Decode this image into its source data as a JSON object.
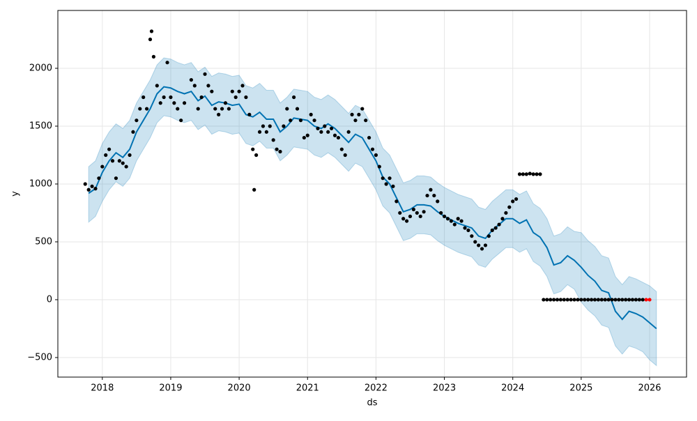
{
  "chart_data": {
    "type": "line",
    "xlabel": "ds",
    "ylabel": "y",
    "xlim": [
      2017.35,
      2026.54
    ],
    "ylim": [
      -669,
      2500
    ],
    "xticks": [
      2018,
      2019,
      2020,
      2021,
      2022,
      2023,
      2024,
      2025,
      2026
    ],
    "yticks": [
      {
        "value": -500,
        "label": "−500"
      },
      0,
      500,
      1000,
      1500,
      2000
    ],
    "grid": true,
    "series": [
      {
        "type": "band",
        "color": "#0072b2",
        "x": [
          2017.8,
          2017.9,
          2018.0,
          2018.1,
          2018.2,
          2018.3,
          2018.4,
          2018.5,
          2018.6,
          2018.7,
          2018.8,
          2018.9,
          2019.0,
          2019.1,
          2019.2,
          2019.3,
          2019.4,
          2019.5,
          2019.6,
          2019.7,
          2019.8,
          2019.9,
          2020.0,
          2020.1,
          2020.2,
          2020.3,
          2020.4,
          2020.5,
          2020.6,
          2020.7,
          2020.8,
          2020.9,
          2021.0,
          2021.1,
          2021.2,
          2021.3,
          2021.4,
          2021.5,
          2021.6,
          2021.7,
          2021.8,
          2021.9,
          2022.0,
          2022.1,
          2022.2,
          2022.3,
          2022.4,
          2022.5,
          2022.6,
          2022.7,
          2022.8,
          2022.9,
          2023.0,
          2023.1,
          2023.2,
          2023.3,
          2023.4,
          2023.5,
          2023.6,
          2023.7,
          2023.8,
          2023.9,
          2024.0,
          2024.1,
          2024.2,
          2024.3,
          2024.4,
          2024.5,
          2024.6,
          2024.7,
          2024.8,
          2024.9,
          2025.0,
          2025.1,
          2025.2,
          2025.3,
          2025.4,
          2025.5,
          2025.6,
          2025.7,
          2025.8,
          2025.9,
          2026.0,
          2026.1
        ],
        "lower": [
          670,
          720,
          850,
          950,
          1020,
          980,
          1050,
          1200,
          1300,
          1400,
          1530,
          1590,
          1580,
          1550,
          1530,
          1550,
          1470,
          1510,
          1430,
          1460,
          1450,
          1430,
          1440,
          1350,
          1330,
          1370,
          1310,
          1310,
          1200,
          1250,
          1320,
          1310,
          1300,
          1250,
          1230,
          1270,
          1230,
          1170,
          1110,
          1180,
          1150,
          1050,
          950,
          810,
          750,
          630,
          510,
          530,
          570,
          570,
          560,
          510,
          470,
          440,
          410,
          390,
          370,
          300,
          280,
          350,
          400,
          450,
          450,
          410,
          440,
          330,
          290,
          200,
          50,
          70,
          130,
          90,
          -20,
          -90,
          -140,
          -220,
          -240,
          -400,
          -470,
          -400,
          -420,
          -450,
          -520,
          -570
        ],
        "upper": [
          1150,
          1200,
          1350,
          1450,
          1520,
          1480,
          1550,
          1700,
          1800,
          1900,
          2030,
          2090,
          2080,
          2050,
          2030,
          2050,
          1970,
          2010,
          1930,
          1960,
          1950,
          1930,
          1940,
          1850,
          1830,
          1870,
          1810,
          1810,
          1700,
          1750,
          1820,
          1810,
          1800,
          1750,
          1730,
          1770,
          1730,
          1670,
          1610,
          1680,
          1650,
          1550,
          1450,
          1310,
          1250,
          1130,
          1010,
          1030,
          1070,
          1070,
          1060,
          1010,
          970,
          940,
          910,
          890,
          870,
          800,
          780,
          850,
          900,
          950,
          950,
          910,
          940,
          830,
          790,
          700,
          550,
          570,
          630,
          590,
          580,
          510,
          460,
          380,
          360,
          200,
          130,
          200,
          180,
          150,
          120,
          70
        ]
      },
      {
        "type": "line",
        "color": "#0072b2",
        "x": [
          2017.8,
          2017.9,
          2018.0,
          2018.1,
          2018.2,
          2018.3,
          2018.4,
          2018.5,
          2018.6,
          2018.7,
          2018.8,
          2018.9,
          2019.0,
          2019.1,
          2019.2,
          2019.3,
          2019.4,
          2019.5,
          2019.6,
          2019.7,
          2019.8,
          2019.9,
          2020.0,
          2020.1,
          2020.2,
          2020.3,
          2020.4,
          2020.5,
          2020.6,
          2020.7,
          2020.8,
          2020.9,
          2021.0,
          2021.1,
          2021.2,
          2021.3,
          2021.4,
          2021.5,
          2021.6,
          2021.7,
          2021.8,
          2021.9,
          2022.0,
          2022.1,
          2022.2,
          2022.3,
          2022.4,
          2022.5,
          2022.6,
          2022.7,
          2022.8,
          2022.9,
          2023.0,
          2023.1,
          2023.2,
          2023.3,
          2023.4,
          2023.5,
          2023.6,
          2023.7,
          2023.8,
          2023.9,
          2024.0,
          2024.1,
          2024.2,
          2024.3,
          2024.4,
          2024.5,
          2024.6,
          2024.7,
          2024.8,
          2024.9,
          2025.0,
          2025.1,
          2025.2,
          2025.3,
          2025.4,
          2025.5,
          2025.6,
          2025.7,
          2025.8,
          2025.9,
          2026.0,
          2026.1
        ],
        "values": [
          920,
          960,
          1100,
          1200,
          1270,
          1230,
          1300,
          1450,
          1550,
          1650,
          1780,
          1840,
          1830,
          1800,
          1780,
          1800,
          1720,
          1760,
          1680,
          1710,
          1700,
          1680,
          1690,
          1600,
          1580,
          1620,
          1560,
          1560,
          1450,
          1500,
          1570,
          1560,
          1550,
          1500,
          1480,
          1520,
          1480,
          1420,
          1360,
          1430,
          1400,
          1300,
          1200,
          1060,
          1000,
          880,
          760,
          780,
          820,
          820,
          810,
          760,
          720,
          690,
          660,
          640,
          620,
          550,
          530,
          600,
          650,
          700,
          700,
          660,
          690,
          580,
          540,
          450,
          300,
          320,
          380,
          340,
          280,
          210,
          160,
          80,
          60,
          -100,
          -170,
          -100,
          -120,
          -150,
          -200,
          -250
        ]
      },
      {
        "type": "scatter",
        "color": "#000000",
        "x": [
          2017.75,
          2017.8,
          2017.85,
          2017.9,
          2017.95,
          2018.0,
          2018.05,
          2018.1,
          2018.15,
          2018.2,
          2018.25,
          2018.3,
          2018.35,
          2018.4,
          2018.45,
          2018.5,
          2018.55,
          2018.6,
          2018.65,
          2018.7,
          2018.72,
          2018.75,
          2018.8,
          2018.85,
          2018.9,
          2018.95,
          2019.0,
          2019.05,
          2019.1,
          2019.15,
          2019.2,
          2019.3,
          2019.35,
          2019.4,
          2019.45,
          2019.5,
          2019.55,
          2019.6,
          2019.65,
          2019.7,
          2019.75,
          2019.8,
          2019.85,
          2019.9,
          2019.95,
          2020.0,
          2020.05,
          2020.1,
          2020.15,
          2020.2,
          2020.22,
          2020.25,
          2020.3,
          2020.35,
          2020.4,
          2020.45,
          2020.5,
          2020.55,
          2020.6,
          2020.65,
          2020.7,
          2020.75,
          2020.8,
          2020.85,
          2020.9,
          2020.95,
          2021.0,
          2021.05,
          2021.1,
          2021.15,
          2021.2,
          2021.25,
          2021.3,
          2021.35,
          2021.4,
          2021.45,
          2021.5,
          2021.55,
          2021.6,
          2021.65,
          2021.7,
          2021.75,
          2021.8,
          2021.85,
          2021.9,
          2021.95,
          2022.0,
          2022.05,
          2022.1,
          2022.15,
          2022.2,
          2022.25,
          2022.3,
          2022.35,
          2022.4,
          2022.45,
          2022.5,
          2022.55,
          2022.6,
          2022.65,
          2022.7,
          2022.75,
          2022.8,
          2022.85,
          2022.9,
          2022.95,
          2023.0,
          2023.05,
          2023.1,
          2023.15,
          2023.2,
          2023.25,
          2023.3,
          2023.35,
          2023.4,
          2023.45,
          2023.5,
          2023.55,
          2023.6,
          2023.65,
          2023.7,
          2023.75,
          2023.8,
          2023.85,
          2023.9,
          2023.95,
          2024.0,
          2024.05,
          2024.1,
          2024.15,
          2024.2,
          2024.25,
          2024.3,
          2024.35,
          2024.4,
          2024.45,
          2024.5,
          2024.55,
          2024.6,
          2024.65,
          2024.7,
          2024.75,
          2024.8,
          2024.85,
          2024.9,
          2024.95,
          2025.0,
          2025.05,
          2025.1,
          2025.15,
          2025.2,
          2025.25,
          2025.3,
          2025.35,
          2025.4,
          2025.45,
          2025.5,
          2025.55,
          2025.6,
          2025.65,
          2025.7,
          2025.75,
          2025.8,
          2025.85,
          2025.9
        ],
        "values": [
          1000,
          950,
          980,
          960,
          1050,
          1150,
          1250,
          1300,
          1200,
          1050,
          1200,
          1180,
          1150,
          1250,
          1450,
          1550,
          1650,
          1750,
          1650,
          2250,
          2320,
          2100,
          1850,
          1700,
          1750,
          2050,
          1750,
          1700,
          1650,
          1550,
          1700,
          1900,
          1850,
          1650,
          1750,
          1950,
          1850,
          1800,
          1650,
          1600,
          1650,
          1700,
          1650,
          1800,
          1750,
          1800,
          1850,
          1750,
          1600,
          1300,
          950,
          1250,
          1450,
          1500,
          1450,
          1500,
          1380,
          1300,
          1280,
          1500,
          1650,
          1550,
          1750,
          1650,
          1550,
          1400,
          1420,
          1600,
          1550,
          1480,
          1450,
          1500,
          1450,
          1480,
          1420,
          1400,
          1300,
          1250,
          1450,
          1600,
          1550,
          1600,
          1650,
          1550,
          1400,
          1300,
          1250,
          1150,
          1050,
          1000,
          1050,
          980,
          850,
          750,
          700,
          680,
          720,
          780,
          750,
          720,
          760,
          900,
          950,
          900,
          850,
          750,
          720,
          700,
          680,
          650,
          700,
          680,
          620,
          600,
          550,
          500,
          470,
          440,
          470,
          550,
          600,
          620,
          650,
          700,
          750,
          800,
          850,
          870,
          1085,
          1085,
          1085,
          1090,
          1085,
          1085,
          1085,
          0,
          0,
          0,
          0,
          0,
          0,
          0,
          0,
          0,
          0,
          0,
          0,
          0,
          0,
          0,
          0,
          0,
          0,
          0,
          0,
          0,
          0,
          0,
          0,
          0,
          0,
          0,
          0,
          0,
          0
        ]
      },
      {
        "type": "scatter",
        "color": "#ff0000",
        "x": [
          2025.95,
          2026.0
        ],
        "values": [
          0,
          0
        ]
      }
    ]
  }
}
